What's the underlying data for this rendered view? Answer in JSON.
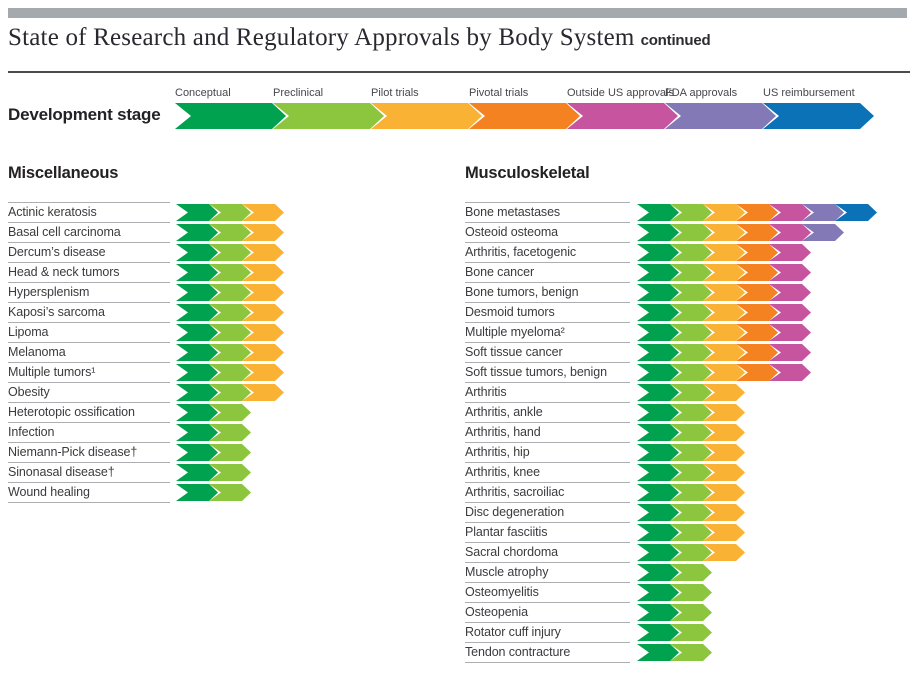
{
  "header": {
    "title": "State of Research and Regulatory Approvals by Body System",
    "title_suffix": "continued"
  },
  "legend": {
    "label": "Development stage",
    "stages": [
      {
        "name": "Conceptual",
        "color": "#00A14F"
      },
      {
        "name": "Preclinical",
        "color": "#8CC63F"
      },
      {
        "name": "Pilot trials",
        "color": "#F9B233"
      },
      {
        "name": "Pivotal trials",
        "color": "#F58220"
      },
      {
        "name": "Outside US approvals",
        "color": "#C7549F"
      },
      {
        "name": "FDA approvals",
        "color": "#8379B7"
      },
      {
        "name": "US reimbursement",
        "color": "#0B72B8"
      }
    ]
  },
  "chart_data": {
    "type": "bar",
    "title": "State of Research and Regulatory Approvals by Body System (continued)",
    "unit": "development stages reached (1-7)",
    "stage_scale": [
      "Conceptual",
      "Preclinical",
      "Pilot trials",
      "Pivotal trials",
      "Outside US approvals",
      "FDA approvals",
      "US reimbursement"
    ],
    "legend_position": "top",
    "groups": [
      {
        "name": "Miscellaneous",
        "rows": [
          {
            "label": "Actinic keratosis",
            "stages_reached": 3,
            "furthest_stage": "Pilot trials"
          },
          {
            "label": "Basal cell carcinoma",
            "stages_reached": 3,
            "furthest_stage": "Pilot trials"
          },
          {
            "label": "Dercum’s disease",
            "stages_reached": 3,
            "furthest_stage": "Pilot trials"
          },
          {
            "label": "Head & neck tumors",
            "stages_reached": 3,
            "furthest_stage": "Pilot trials"
          },
          {
            "label": "Hypersplenism",
            "stages_reached": 3,
            "furthest_stage": "Pilot trials"
          },
          {
            "label": "Kaposi’s sarcoma",
            "stages_reached": 3,
            "furthest_stage": "Pilot trials"
          },
          {
            "label": "Lipoma",
            "stages_reached": 3,
            "furthest_stage": "Pilot trials"
          },
          {
            "label": "Melanoma",
            "stages_reached": 3,
            "furthest_stage": "Pilot trials"
          },
          {
            "label": "Multiple tumors¹",
            "stages_reached": 3,
            "furthest_stage": "Pilot trials"
          },
          {
            "label": "Obesity",
            "stages_reached": 3,
            "furthest_stage": "Pilot trials"
          },
          {
            "label": "Heterotopic ossification",
            "stages_reached": 2,
            "furthest_stage": "Preclinical"
          },
          {
            "label": "Infection",
            "stages_reached": 2,
            "furthest_stage": "Preclinical"
          },
          {
            "label": "Niemann-Pick disease†",
            "stages_reached": 2,
            "furthest_stage": "Preclinical"
          },
          {
            "label": "Sinonasal disease†",
            "stages_reached": 2,
            "furthest_stage": "Preclinical"
          },
          {
            "label": "Wound healing",
            "stages_reached": 2,
            "furthest_stage": "Preclinical"
          }
        ]
      },
      {
        "name": "Musculoskeletal",
        "rows": [
          {
            "label": "Bone metastases",
            "stages_reached": 7,
            "furthest_stage": "US reimbursement"
          },
          {
            "label": "Osteoid osteoma",
            "stages_reached": 6,
            "furthest_stage": "FDA approvals"
          },
          {
            "label": "Arthritis, facetogenic",
            "stages_reached": 5,
            "furthest_stage": "Outside US approvals"
          },
          {
            "label": "Bone cancer",
            "stages_reached": 5,
            "furthest_stage": "Outside US approvals"
          },
          {
            "label": "Bone tumors, benign",
            "stages_reached": 5,
            "furthest_stage": "Outside US approvals"
          },
          {
            "label": "Desmoid tumors",
            "stages_reached": 5,
            "furthest_stage": "Outside US approvals"
          },
          {
            "label": "Multiple myeloma²",
            "stages_reached": 5,
            "furthest_stage": "Outside US approvals"
          },
          {
            "label": "Soft tissue cancer",
            "stages_reached": 5,
            "furthest_stage": "Outside US approvals"
          },
          {
            "label": "Soft tissue tumors, benign",
            "stages_reached": 5,
            "furthest_stage": "Outside US approvals"
          },
          {
            "label": "Arthritis",
            "stages_reached": 3,
            "furthest_stage": "Pilot trials"
          },
          {
            "label": "Arthritis, ankle",
            "stages_reached": 3,
            "furthest_stage": "Pilot trials"
          },
          {
            "label": "Arthritis, hand",
            "stages_reached": 3,
            "furthest_stage": "Pilot trials"
          },
          {
            "label": "Arthritis, hip",
            "stages_reached": 3,
            "furthest_stage": "Pilot trials"
          },
          {
            "label": "Arthritis, knee",
            "stages_reached": 3,
            "furthest_stage": "Pilot trials"
          },
          {
            "label": "Arthritis, sacroiliac",
            "stages_reached": 3,
            "furthest_stage": "Pilot trials"
          },
          {
            "label": "Disc degeneration",
            "stages_reached": 3,
            "furthest_stage": "Pilot trials"
          },
          {
            "label": "Plantar fasciitis",
            "stages_reached": 3,
            "furthest_stage": "Pilot trials"
          },
          {
            "label": "Sacral chordoma",
            "stages_reached": 3,
            "furthest_stage": "Pilot trials"
          },
          {
            "label": "Muscle atrophy",
            "stages_reached": 2,
            "furthest_stage": "Preclinical"
          },
          {
            "label": "Osteomyelitis",
            "stages_reached": 2,
            "furthest_stage": "Preclinical"
          },
          {
            "label": "Osteopenia",
            "stages_reached": 2,
            "furthest_stage": "Preclinical"
          },
          {
            "label": "Rotator cuff injury",
            "stages_reached": 2,
            "furthest_stage": "Preclinical"
          },
          {
            "label": "Tendon contracture",
            "stages_reached": 2,
            "furthest_stage": "Preclinical"
          }
        ]
      }
    ]
  },
  "colors": {
    "top_accent_bar": "#A4A9AE",
    "title_rule": "#4A4C50",
    "row_line": "#ACAEB1",
    "label_text": "#3B3B3D"
  }
}
